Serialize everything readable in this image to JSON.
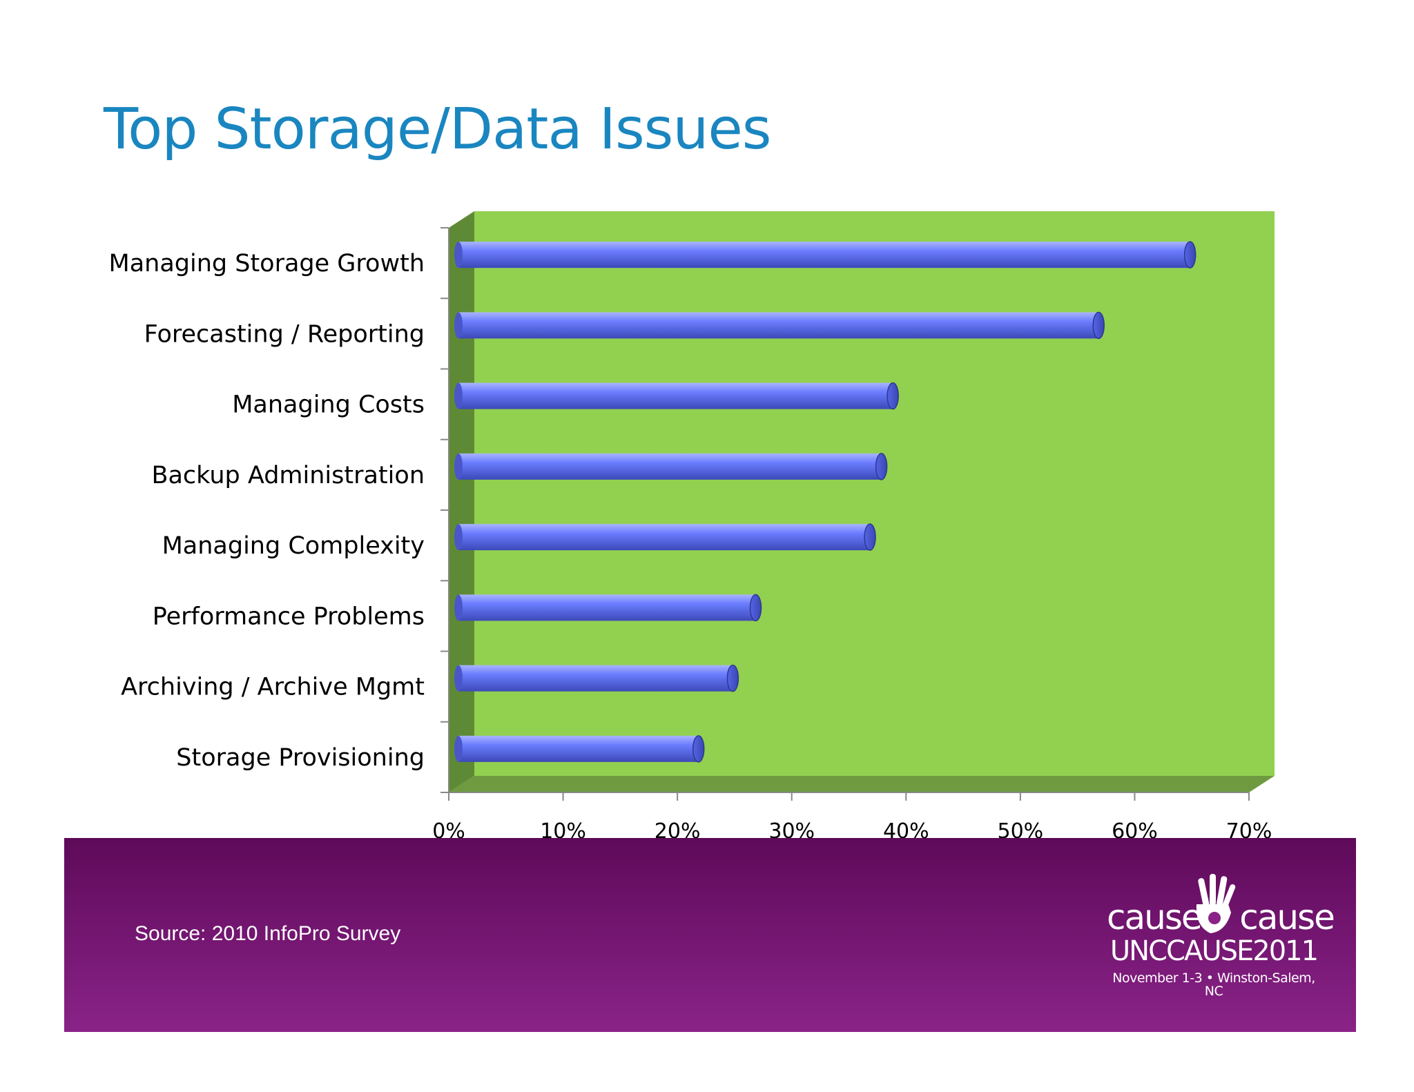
{
  "slide": {
    "title": "Top Storage/Data Issues",
    "source": "Source: 2010 InfoPro Survey"
  },
  "logo": {
    "brand": "cause    cause",
    "event": "UNCCAUSE2011",
    "dates": "November 1-3 • Winston-Salem, NC"
  },
  "colors": {
    "title": "#1a86c0",
    "plot_back": "#92d050",
    "plot_side": "#5f8a35",
    "bar": "#6b7dff",
    "footer_top": "#5e0a5a",
    "footer_bottom": "#8a2388"
  },
  "chart_data": {
    "type": "bar",
    "orientation": "horizontal",
    "style": "3d-cylinder",
    "categories": [
      "Managing Storage Growth",
      "Forecasting / Reporting",
      "Managing Costs",
      "Backup Administration",
      "Managing Complexity",
      "Performance Problems",
      "Archiving / Archive Mgmt",
      "Storage Provisioning"
    ],
    "values": [
      64,
      56,
      38,
      37,
      36,
      26,
      24,
      21
    ],
    "xlim": [
      0,
      70
    ],
    "x_ticks": [
      "0%",
      "10%",
      "20%",
      "30%",
      "40%",
      "50%",
      "60%",
      "70%"
    ],
    "legend": "none",
    "grid": false
  }
}
